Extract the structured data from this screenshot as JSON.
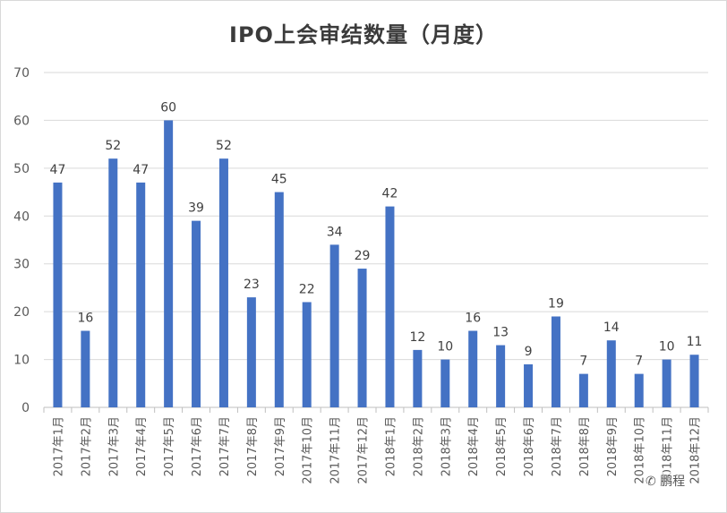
{
  "chart_data": {
    "type": "bar",
    "title": "IPO上会审结数量（月度）",
    "xlabel": "",
    "ylabel": "",
    "ylim": [
      0,
      70
    ],
    "yticks": [
      0,
      10,
      20,
      30,
      40,
      50,
      60,
      70
    ],
    "grid": true,
    "legend": "none",
    "bar_color": "#4472c4",
    "categories": [
      "2017年1月",
      "2017年2月",
      "2017年3月",
      "2017年4月",
      "2017年5月",
      "2017年6月",
      "2017年7月",
      "2017年8月",
      "2017年9月",
      "2017年10月",
      "2017年11月",
      "2017年12月",
      "2018年1月",
      "2018年2月",
      "2018年3月",
      "2018年4月",
      "2018年5月",
      "2018年6月",
      "2018年7月",
      "2018年8月",
      "2018年9月",
      "2018年10月",
      "2018年11月",
      "2018年12月"
    ],
    "values": [
      47,
      16,
      52,
      47,
      60,
      39,
      52,
      23,
      45,
      22,
      34,
      29,
      42,
      12,
      10,
      16,
      13,
      9,
      19,
      7,
      14,
      7,
      10,
      11
    ]
  },
  "watermark": {
    "icon": "wechat-icon",
    "text": "鹏程"
  }
}
